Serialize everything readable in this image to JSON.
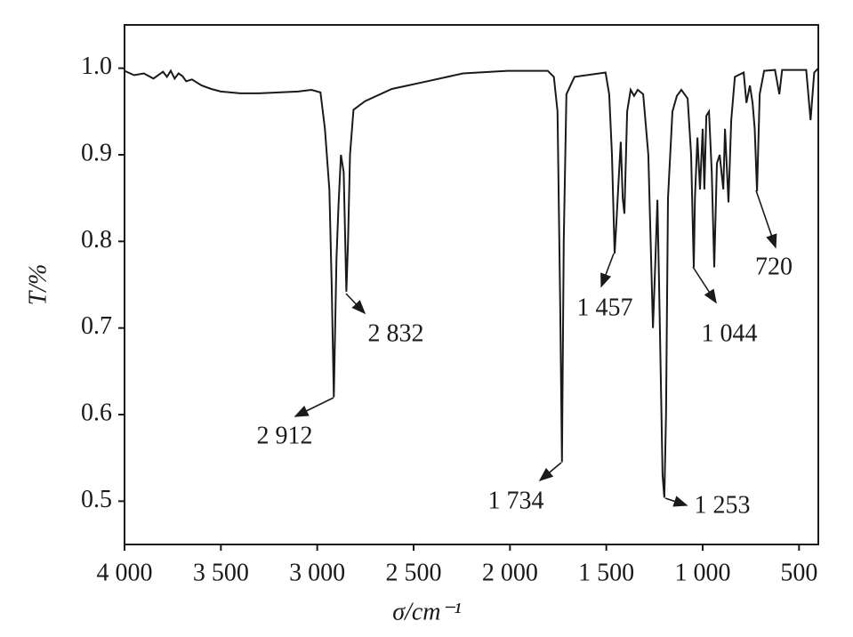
{
  "chart_data": {
    "type": "line",
    "xlabel": "σ/cm⁻¹",
    "ylabel": "T/%",
    "xlim": [
      4000,
      400
    ],
    "ylim": [
      0.45,
      1.05
    ],
    "xticks": [
      {
        "value": 4000,
        "label": "4 000"
      },
      {
        "value": 3500,
        "label": "3 500"
      },
      {
        "value": 3000,
        "label": "3 000"
      },
      {
        "value": 2500,
        "label": "2 500"
      },
      {
        "value": 2000,
        "label": "2 000"
      },
      {
        "value": 1500,
        "label": "1 500"
      },
      {
        "value": 1000,
        "label": "1 000"
      },
      500
    ],
    "yticks": [
      0.5,
      0.6,
      0.7,
      0.8,
      0.9,
      {
        "value": 1,
        "label": "1.0"
      }
    ],
    "series": [
      {
        "color": "#1a1a1a",
        "x": [
          4000,
          3950,
          3900,
          3850,
          3800,
          3780,
          3760,
          3740,
          3720,
          3700,
          3680,
          3650,
          3600,
          3550,
          3500,
          3400,
          3300,
          3200,
          3100,
          3030,
          2983,
          2960,
          2937,
          2925,
          2914,
          2900,
          2890,
          2877,
          2863,
          2849,
          2840,
          2830,
          2812,
          2752,
          2613,
          2428,
          2243,
          2012,
          1804,
          1772,
          1753,
          1739,
          1730,
          1721,
          1707,
          1665,
          1504,
          1485,
          1471,
          1457,
          1448,
          1434,
          1425,
          1415,
          1406,
          1392,
          1374,
          1356,
          1337,
          1309,
          1282,
          1258,
          1245,
          1235,
          1226,
          1208,
          1199,
          1190,
          1180,
          1157,
          1134,
          1111,
          1078,
          1060,
          1046,
          1040,
          1027,
          1014,
          1000,
          991,
          981,
          967,
          953,
          940,
          926,
          912,
          893,
          884,
          866,
          852,
          833,
          787,
          773,
          755,
          741,
          730,
          718,
          704,
          681,
          625,
          602,
          588,
          463,
          440,
          421,
          400
        ],
        "values": [
          0.997,
          0.992,
          0.994,
          0.988,
          0.996,
          0.99,
          0.997,
          0.988,
          0.994,
          0.991,
          0.985,
          0.987,
          0.98,
          0.976,
          0.973,
          0.971,
          0.971,
          0.972,
          0.973,
          0.975,
          0.972,
          0.93,
          0.86,
          0.75,
          0.62,
          0.78,
          0.84,
          0.9,
          0.88,
          0.742,
          0.8,
          0.9,
          0.952,
          0.962,
          0.976,
          0.985,
          0.994,
          0.997,
          0.997,
          0.99,
          0.95,
          0.72,
          0.545,
          0.8,
          0.97,
          0.99,
          0.995,
          0.97,
          0.9,
          0.786,
          0.82,
          0.88,
          0.915,
          0.85,
          0.832,
          0.95,
          0.975,
          0.968,
          0.975,
          0.97,
          0.9,
          0.7,
          0.78,
          0.848,
          0.75,
          0.53,
          0.504,
          0.6,
          0.85,
          0.95,
          0.968,
          0.975,
          0.965,
          0.9,
          0.77,
          0.85,
          0.92,
          0.86,
          0.93,
          0.86,
          0.945,
          0.95,
          0.88,
          0.77,
          0.89,
          0.9,
          0.86,
          0.93,
          0.845,
          0.94,
          0.99,
          0.995,
          0.96,
          0.98,
          0.96,
          0.93,
          0.858,
          0.97,
          0.997,
          0.998,
          0.97,
          0.998,
          0.998,
          0.94,
          0.995,
          1.0
        ]
      }
    ],
    "annotations": [
      "2 912",
      "2 832",
      "1 734",
      "1 457",
      "1 253",
      "1 044",
      "720"
    ]
  }
}
